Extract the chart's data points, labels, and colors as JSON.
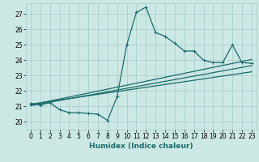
{
  "xlabel": "Humidex (Indice chaleur)",
  "ylabel": "",
  "background_color": "#cce8e5",
  "grid_color": "#aacfcc",
  "line_color": "#1a6b6b",
  "xlim": [
    -0.5,
    23.5
  ],
  "ylim": [
    19.5,
    27.7
  ],
  "xticks": [
    0,
    1,
    2,
    3,
    4,
    5,
    6,
    7,
    8,
    9,
    10,
    11,
    12,
    13,
    14,
    15,
    16,
    17,
    18,
    19,
    20,
    21,
    22,
    23
  ],
  "yticks": [
    20,
    21,
    22,
    23,
    24,
    25,
    26,
    27
  ],
  "main_line_x": [
    0,
    1,
    2,
    3,
    4,
    5,
    6,
    7,
    8,
    9,
    10,
    11,
    12,
    13,
    14,
    15,
    16,
    17,
    18,
    19,
    20,
    21,
    22,
    23
  ],
  "main_line_y": [
    21.2,
    21.1,
    21.25,
    20.8,
    20.6,
    20.6,
    20.55,
    20.5,
    20.1,
    21.65,
    25.0,
    27.1,
    27.45,
    25.8,
    25.55,
    25.1,
    24.6,
    24.6,
    24.0,
    23.85,
    23.85,
    25.0,
    23.85,
    23.8
  ],
  "trend_line1_x": [
    0,
    23
  ],
  "trend_line1_y": [
    21.15,
    23.25
  ],
  "trend_line2_x": [
    0,
    23
  ],
  "trend_line2_y": [
    21.1,
    24.05
  ],
  "trend_line3_x": [
    0,
    23
  ],
  "trend_line3_y": [
    21.05,
    23.65
  ],
  "marker_size": 2.5,
  "line_width": 0.9,
  "tick_fontsize": 5.5,
  "xlabel_fontsize": 6.5
}
